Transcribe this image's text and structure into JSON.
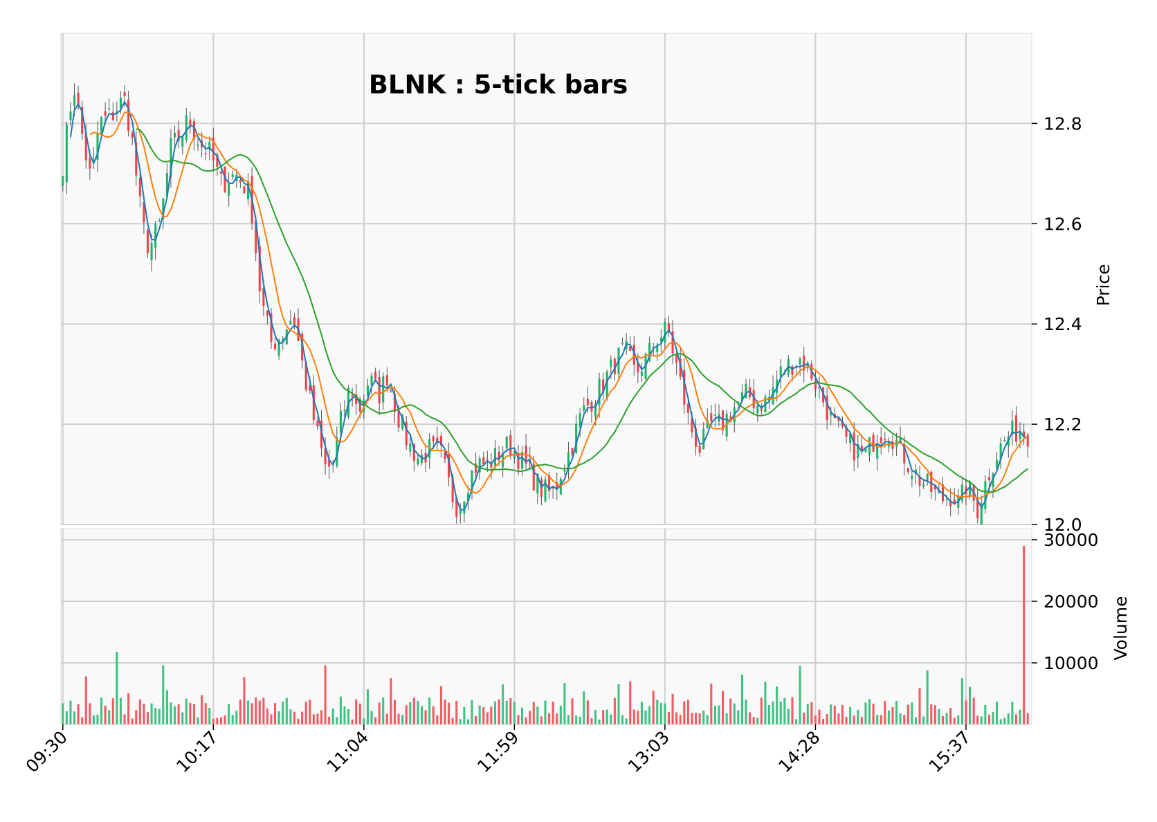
{
  "chart_data": {
    "type": "candlestick",
    "title": "BLNK : 5-tick bars",
    "price_axis": {
      "label": "Price",
      "ylim": [
        12.0,
        12.98
      ],
      "ticks": [
        12.0,
        12.2,
        12.4,
        12.6,
        12.8
      ],
      "tick_labels": [
        "12.0",
        "12.2",
        "12.4",
        "12.6",
        "12.8"
      ],
      "side": "right"
    },
    "volume_axis": {
      "label": "Volume",
      "ylim": [
        0,
        30000
      ],
      "ticks": [
        10000,
        20000,
        30000
      ],
      "tick_labels": [
        "10000",
        "20000",
        "30000"
      ],
      "side": "right"
    },
    "x_ticks": {
      "labels": [
        "09:30",
        "10:17",
        "11:04",
        "11:59",
        "13:03",
        "14:28",
        "15:37"
      ],
      "positions": [
        0,
        39,
        78,
        117,
        156,
        195,
        234
      ]
    },
    "grid": true,
    "colors": {
      "up": "#1fb36a",
      "down": "#f0414a",
      "wick": "#555555",
      "ma_fast": "#1f77b4",
      "ma_mid": "#ff7f0e",
      "ma_slow": "#2ca02c",
      "panel_bg": "#f9f9f9"
    },
    "moving_averages": [
      {
        "window": 3,
        "color": "#1f77b4"
      },
      {
        "window": 8,
        "color": "#ff7f0e"
      },
      {
        "window": 20,
        "color": "#2ca02c"
      }
    ],
    "n_bars": 251,
    "anchors": [
      [
        0,
        12.72
      ],
      [
        3,
        12.88
      ],
      [
        6,
        12.75
      ],
      [
        8,
        12.68
      ],
      [
        10,
        12.8
      ],
      [
        14,
        12.82
      ],
      [
        17,
        12.85
      ],
      [
        19,
        12.78
      ],
      [
        22,
        12.6
      ],
      [
        24,
        12.55
      ],
      [
        27,
        12.6
      ],
      [
        30,
        12.75
      ],
      [
        33,
        12.78
      ],
      [
        35,
        12.81
      ],
      [
        38,
        12.76
      ],
      [
        41,
        12.74
      ],
      [
        44,
        12.68
      ],
      [
        48,
        12.7
      ],
      [
        52,
        12.66
      ],
      [
        55,
        12.45
      ],
      [
        58,
        12.36
      ],
      [
        61,
        12.38
      ],
      [
        64,
        12.42
      ],
      [
        67,
        12.3
      ],
      [
        70,
        12.2
      ],
      [
        73,
        12.11
      ],
      [
        75,
        12.12
      ],
      [
        77,
        12.2
      ],
      [
        80,
        12.28
      ],
      [
        82,
        12.22
      ],
      [
        85,
        12.29
      ],
      [
        88,
        12.26
      ],
      [
        90,
        12.3
      ],
      [
        93,
        12.22
      ],
      [
        96,
        12.16
      ],
      [
        99,
        12.13
      ],
      [
        102,
        12.15
      ],
      [
        105,
        12.14
      ],
      [
        108,
        12.06
      ],
      [
        110,
        12.03
      ],
      [
        112,
        12.08
      ],
      [
        115,
        12.12
      ],
      [
        118,
        12.12
      ],
      [
        121,
        12.14
      ],
      [
        124,
        12.16
      ],
      [
        127,
        12.13
      ],
      [
        130,
        12.1
      ],
      [
        133,
        12.07
      ],
      [
        136,
        12.06
      ],
      [
        138,
        12.1
      ],
      [
        141,
        12.15
      ],
      [
        144,
        12.22
      ],
      [
        147,
        12.25
      ],
      [
        150,
        12.28
      ],
      [
        153,
        12.32
      ],
      [
        156,
        12.35
      ],
      [
        159,
        12.3
      ],
      [
        162,
        12.33
      ],
      [
        165,
        12.37
      ],
      [
        168,
        12.39
      ],
      [
        171,
        12.3
      ],
      [
        174,
        12.2
      ],
      [
        177,
        12.15
      ],
      [
        180,
        12.2
      ],
      [
        183,
        12.2
      ],
      [
        186,
        12.23
      ],
      [
        190,
        12.26
      ],
      [
        193,
        12.24
      ],
      [
        196,
        12.25
      ],
      [
        199,
        12.3
      ],
      [
        202,
        12.32
      ],
      [
        205,
        12.33
      ],
      [
        208,
        12.3
      ],
      [
        211,
        12.25
      ],
      [
        214,
        12.2
      ],
      [
        217,
        12.17
      ],
      [
        220,
        12.15
      ],
      [
        223,
        12.14
      ],
      [
        226,
        12.18
      ],
      [
        229,
        12.19
      ],
      [
        232,
        12.16
      ],
      [
        235,
        12.12
      ],
      [
        238,
        12.09
      ],
      [
        241,
        12.07
      ],
      [
        244,
        12.05
      ],
      [
        247,
        12.06
      ],
      [
        249,
        12.04
      ],
      [
        251,
        12.08
      ],
      [
        254,
        12.03
      ],
      [
        257,
        12.1
      ],
      [
        260,
        12.15
      ],
      [
        263,
        12.18
      ],
      [
        266,
        12.19
      ],
      [
        268,
        12.18
      ]
    ],
    "volume_spikes": [
      [
        6,
        7800
      ],
      [
        14,
        11800
      ],
      [
        26,
        9600
      ],
      [
        68,
        9600
      ],
      [
        191,
        9500
      ],
      [
        233,
        7500
      ],
      [
        249,
        29000
      ]
    ],
    "base_volume": 2000
  }
}
